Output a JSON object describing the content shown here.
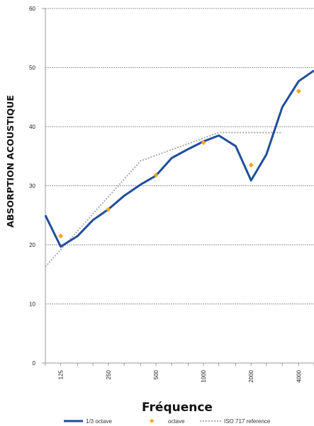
{
  "chart_data": {
    "type": "line",
    "title": "",
    "xlabel": "Fréquence",
    "ylabel": "ABSORPTION ACOUSTIQUE",
    "ylim": [
      0,
      60
    ],
    "yticks": [
      "0",
      "10",
      "20",
      "30",
      "40",
      "50",
      "60"
    ],
    "xticks": [
      "125",
      "250",
      "500",
      "1000",
      "2000",
      "4000"
    ],
    "grid": "horizontal",
    "legend_position": "bottom",
    "colors": {
      "third_octave": "#1f4e9a",
      "octave": "#f5a623",
      "reference": "#aaaaaa",
      "grid": "#9a9a9a"
    },
    "series": [
      {
        "name": "1/3 octave",
        "style": "solid-line",
        "x": [
          100,
          125,
          160,
          200,
          250,
          315,
          400,
          500,
          630,
          800,
          1000,
          1250,
          1600,
          2000,
          2500,
          3150,
          4000,
          5000
        ],
        "y": [
          25,
          19.7,
          21.5,
          24.2,
          26,
          28.3,
          30.2,
          31.7,
          34.7,
          36.2,
          37.5,
          38.5,
          36.7,
          30.9,
          35.3,
          43.3,
          47.7,
          49.5
        ]
      },
      {
        "name": "octave",
        "style": "markers",
        "x": [
          125,
          250,
          500,
          1000,
          2000,
          4000
        ],
        "y": [
          21.5,
          26,
          31.8,
          37.3,
          33.5,
          46
        ]
      },
      {
        "name": "ISO 717 reference",
        "style": "dotted-line",
        "x": [
          100,
          400,
          1250,
          3150
        ],
        "y": [
          16.3,
          34.2,
          39,
          39
        ]
      }
    ]
  }
}
